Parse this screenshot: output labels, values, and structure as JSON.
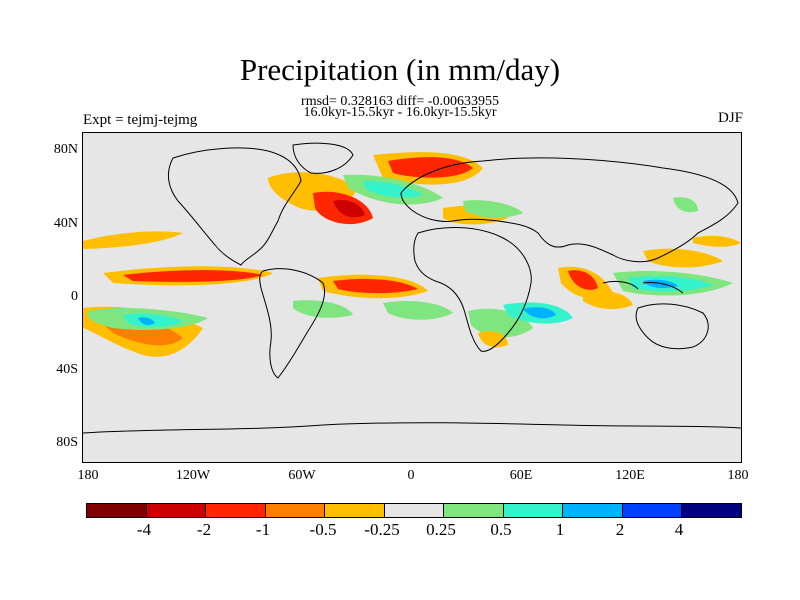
{
  "title": "Precipitation (in mm/day)",
  "subtitle_line1": "rmsd= 0.328163 diff= -0.00633955",
  "subtitle_line2": "16.0kyr-15.5kyr - 16.0kyr-15.5kyr",
  "left_label": "Expt = tejmj-tejmg",
  "right_label": "DJF",
  "y_ticks": [
    "80N",
    "40N",
    "0",
    "40S",
    "80S"
  ],
  "x_ticks": [
    "180",
    "120W",
    "60W",
    "0",
    "60E",
    "120E",
    "180"
  ],
  "colorbar": {
    "colors": [
      "#800000",
      "#cc0000",
      "#ff2600",
      "#ff7f00",
      "#ffbf00",
      "#e6e6e6",
      "#7fe57f",
      "#33f2cc",
      "#00b2ff",
      "#0040ff",
      "#000080"
    ],
    "labels": [
      "-4",
      "-2",
      "-1",
      "-0.5",
      "-0.25",
      "0.25",
      "0.5",
      "1",
      "2",
      "4"
    ]
  }
}
